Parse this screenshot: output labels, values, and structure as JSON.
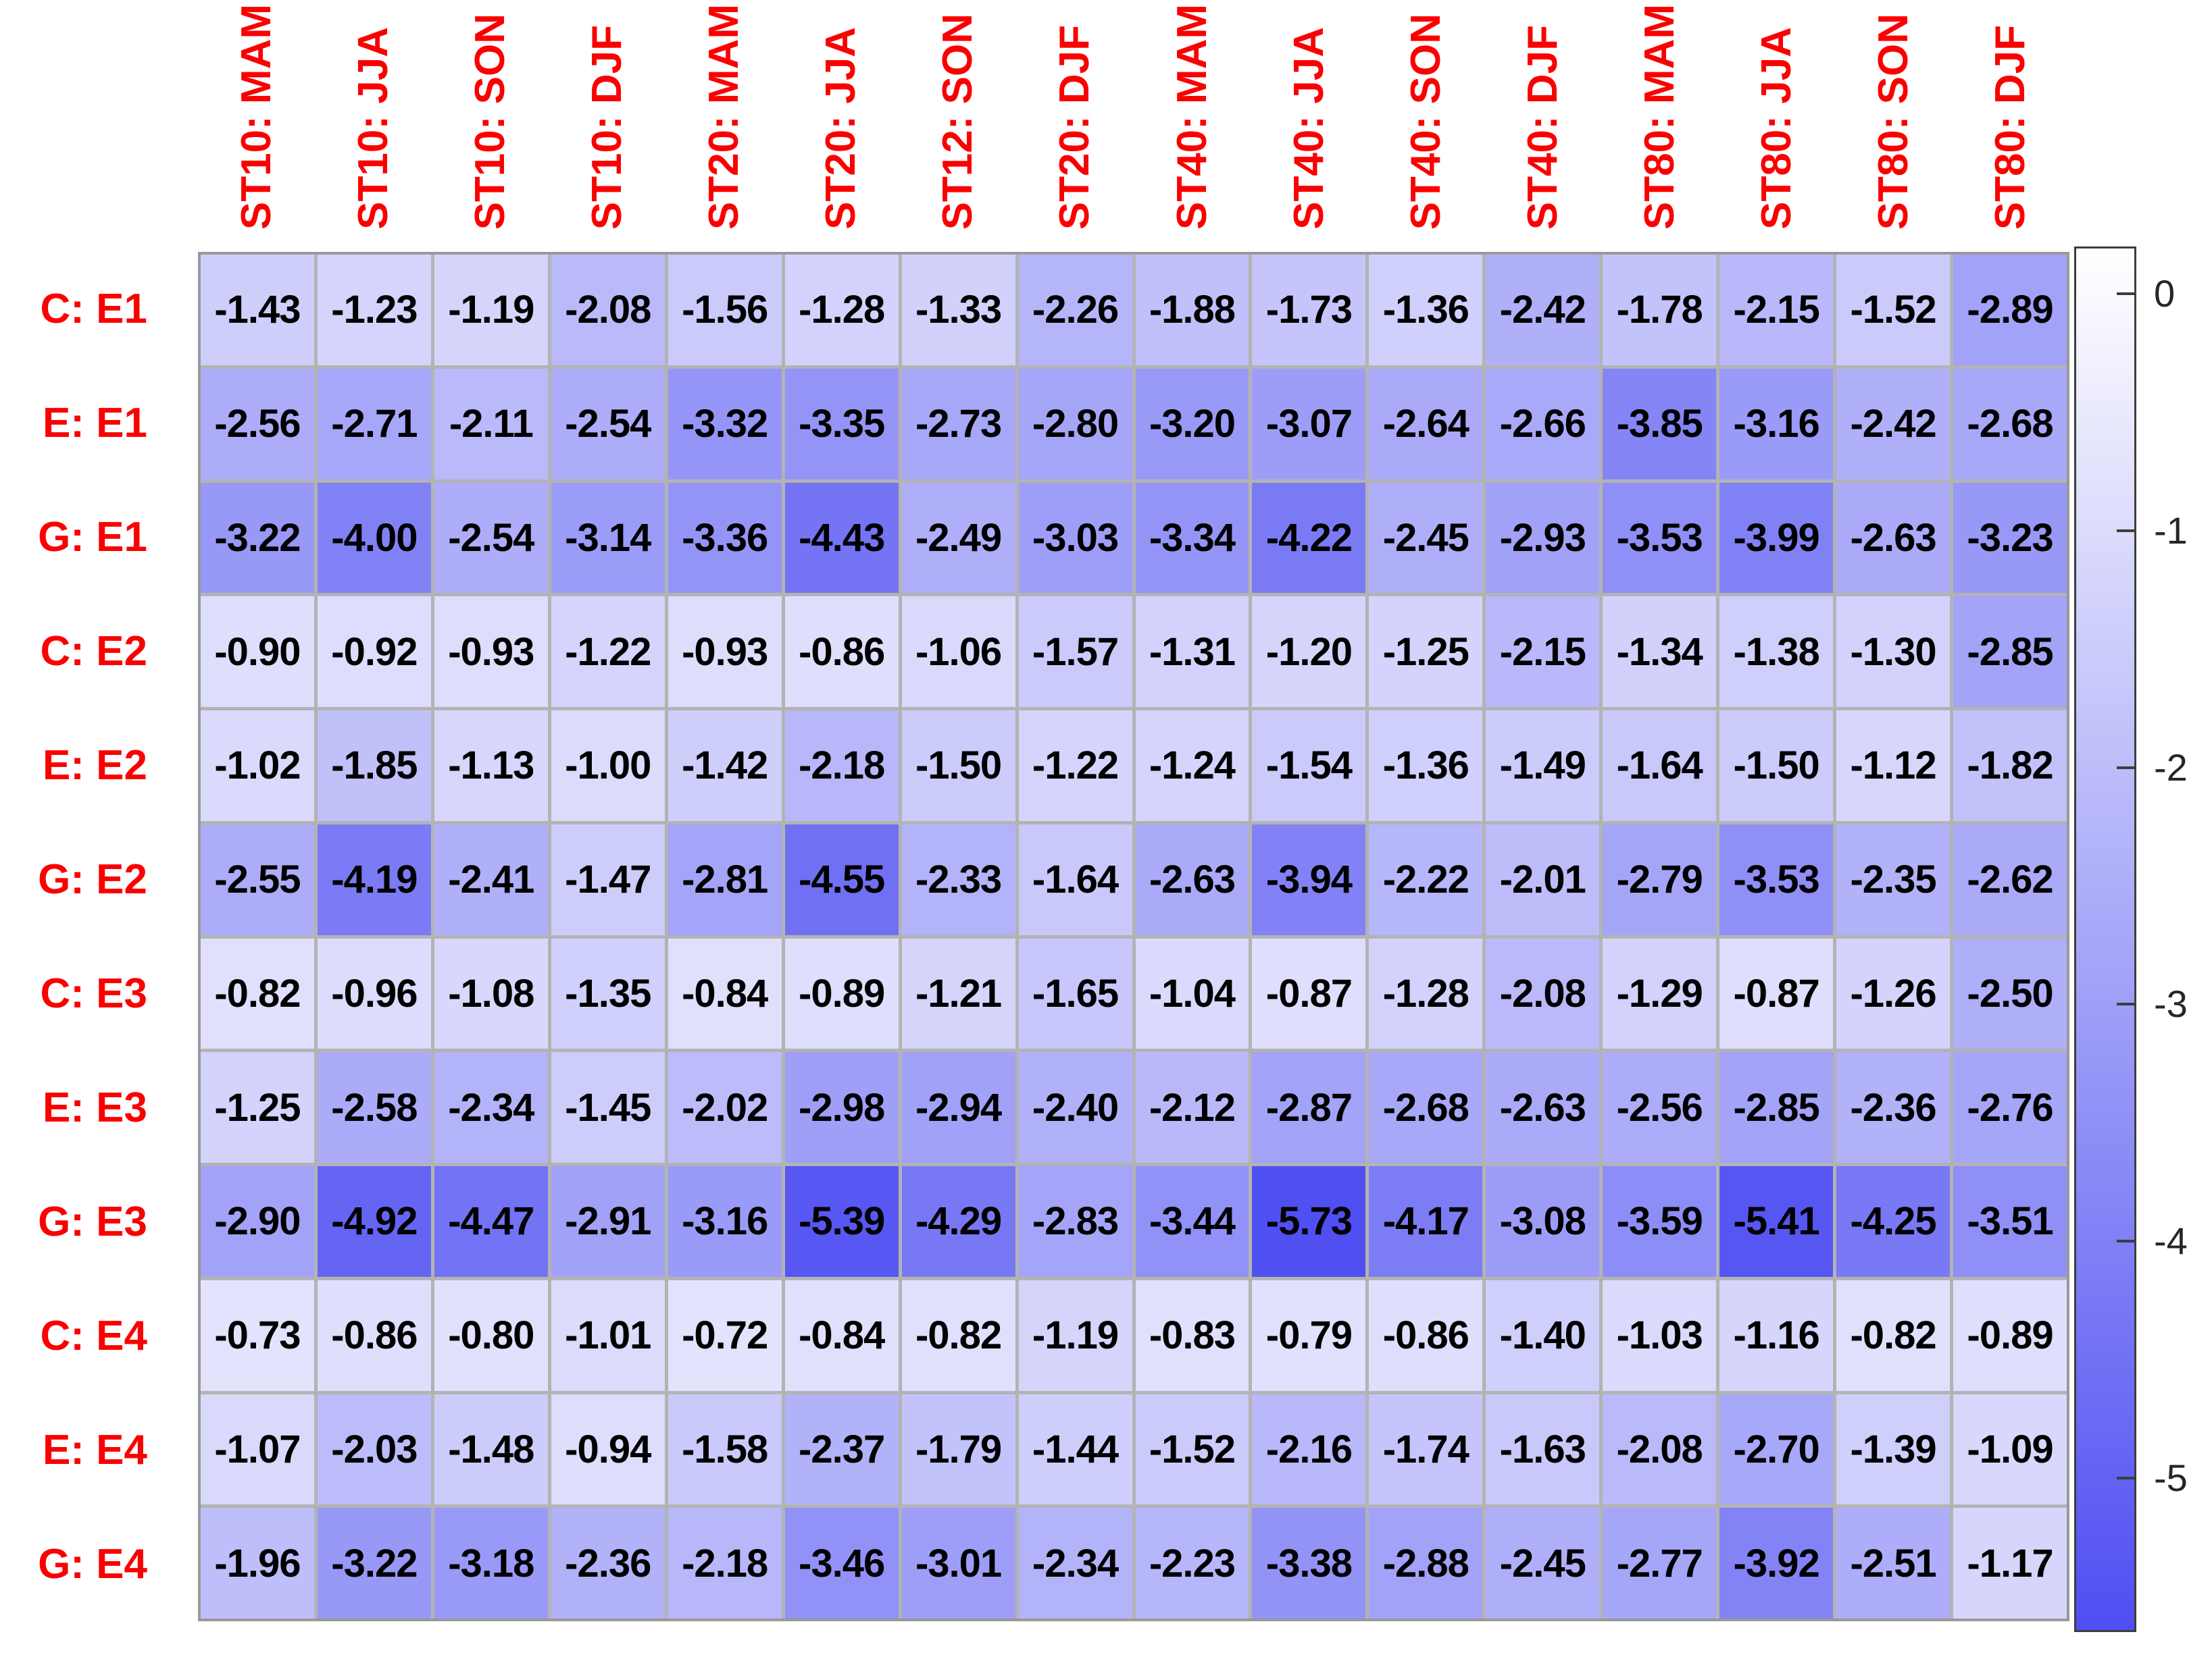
{
  "chart_data": {
    "type": "heatmap",
    "title": "",
    "columns": [
      "ST10: MAM",
      "ST10: JJA",
      "ST10: SON",
      "ST10: DJF",
      "ST20: MAM",
      "ST20: JJA",
      "ST12: SON",
      "ST20: DJF",
      "ST40: MAM",
      "ST40: JJA",
      "ST40: SON",
      "ST40: DJF",
      "ST80: MAM",
      "ST80: JJA",
      "ST80: SON",
      "ST80: DJF"
    ],
    "rows": [
      "C: E1",
      "E: E1",
      "G: E1",
      "C: E2",
      "E: E2",
      "G: E2",
      "C: E3",
      "E: E3",
      "G: E3",
      "C: E4",
      "E: E4",
      "G: E4"
    ],
    "values": [
      [
        -1.43,
        -1.23,
        -1.19,
        -2.08,
        -1.56,
        -1.28,
        -1.33,
        -2.26,
        -1.88,
        -1.73,
        -1.36,
        -2.42,
        -1.78,
        -2.15,
        -1.52,
        -2.89
      ],
      [
        -2.56,
        -2.71,
        -2.11,
        -2.54,
        -3.32,
        -3.35,
        -2.73,
        -2.8,
        -3.2,
        -3.07,
        -2.64,
        -2.66,
        -3.85,
        -3.16,
        -2.42,
        -2.68
      ],
      [
        -3.22,
        -4.0,
        -2.54,
        -3.14,
        -3.36,
        -4.43,
        -2.49,
        -3.03,
        -3.34,
        -4.22,
        -2.45,
        -2.93,
        -3.53,
        -3.99,
        -2.63,
        -3.23
      ],
      [
        -0.9,
        -0.92,
        -0.93,
        -1.22,
        -0.93,
        -0.86,
        -1.06,
        -1.57,
        -1.31,
        -1.2,
        -1.25,
        -2.15,
        -1.34,
        -1.38,
        -1.3,
        -2.85
      ],
      [
        -1.02,
        -1.85,
        -1.13,
        -1.0,
        -1.42,
        -2.18,
        -1.5,
        -1.22,
        -1.24,
        -1.54,
        -1.36,
        -1.49,
        -1.64,
        -1.5,
        -1.12,
        -1.82
      ],
      [
        -2.55,
        -4.19,
        -2.41,
        -1.47,
        -2.81,
        -4.55,
        -2.33,
        -1.64,
        -2.63,
        -3.94,
        -2.22,
        -2.01,
        -2.79,
        -3.53,
        -2.35,
        -2.62
      ],
      [
        -0.82,
        -0.96,
        -1.08,
        -1.35,
        -0.84,
        -0.89,
        -1.21,
        -1.65,
        -1.04,
        -0.87,
        -1.28,
        -2.08,
        -1.29,
        -0.87,
        -1.26,
        -2.5
      ],
      [
        -1.25,
        -2.58,
        -2.34,
        -1.45,
        -2.02,
        -2.98,
        -2.94,
        -2.4,
        -2.12,
        -2.87,
        -2.68,
        -2.63,
        -2.56,
        -2.85,
        -2.36,
        -2.76
      ],
      [
        -2.9,
        -4.92,
        -4.47,
        -2.91,
        -3.16,
        -5.39,
        -4.29,
        -2.83,
        -3.44,
        -5.73,
        -4.17,
        -3.08,
        -3.59,
        -5.41,
        -4.25,
        -3.51
      ],
      [
        -0.73,
        -0.86,
        -0.8,
        -1.01,
        -0.72,
        -0.84,
        -0.82,
        -1.19,
        -0.83,
        -0.79,
        -0.86,
        -1.4,
        -1.03,
        -1.16,
        -0.82,
        -0.89
      ],
      [
        -1.07,
        -2.03,
        -1.48,
        -0.94,
        -1.58,
        -2.37,
        -1.79,
        -1.44,
        -1.52,
        -2.16,
        -1.74,
        -1.63,
        -2.08,
        -2.7,
        -1.39,
        -1.09
      ],
      [
        -1.96,
        -3.22,
        -3.18,
        -2.36,
        -2.18,
        -3.46,
        -3.01,
        -2.34,
        -2.23,
        -3.38,
        -2.88,
        -2.45,
        -2.77,
        -3.92,
        -2.51,
        -1.17
      ]
    ],
    "value_decimals": 2,
    "colors": {
      "tick_label_red": "#fa0000",
      "cell_text": "#000000",
      "grid_line": "#b3b3b3",
      "outer_border": "#999999",
      "colorbar_label": "#262626",
      "colorbar_border": "#3d3d3d"
    },
    "colormap": {
      "high_color": "#ffffff",
      "low_color": "#4f4ff2",
      "vmax": 0.2,
      "vmin": -5.65
    },
    "colorbar": {
      "tick_labels": [
        "0",
        "-1",
        "-2",
        "-3",
        "-4",
        "-5"
      ],
      "tick_values": [
        0,
        -1,
        -2,
        -3,
        -4,
        -5
      ],
      "position": "right"
    },
    "layout_hints": {
      "legend": "none",
      "grid": "on",
      "x_tick_rotation_deg": 90
    }
  }
}
